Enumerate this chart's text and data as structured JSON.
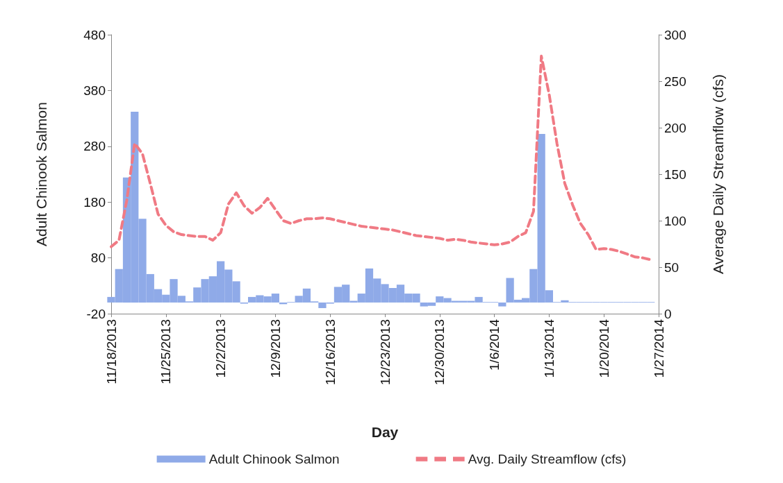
{
  "chart_data": {
    "type": "bar",
    "xlabel": "Day",
    "ylabel": "Adult Chinook Salmon",
    "y2label": "Average Daily Streamflow (cfs)",
    "x": [
      "2013-11-18",
      "2013-11-19",
      "2013-11-20",
      "2013-11-21",
      "2013-11-22",
      "2013-11-23",
      "2013-11-24",
      "2013-11-25",
      "2013-11-26",
      "2013-11-27",
      "2013-11-28",
      "2013-11-29",
      "2013-11-30",
      "2013-12-01",
      "2013-12-02",
      "2013-12-03",
      "2013-12-04",
      "2013-12-05",
      "2013-12-06",
      "2013-12-07",
      "2013-12-08",
      "2013-12-09",
      "2013-12-10",
      "2013-12-11",
      "2013-12-12",
      "2013-12-13",
      "2013-12-14",
      "2013-12-15",
      "2013-12-16",
      "2013-12-17",
      "2013-12-18",
      "2013-12-19",
      "2013-12-20",
      "2013-12-21",
      "2013-12-22",
      "2013-12-23",
      "2013-12-24",
      "2013-12-25",
      "2013-12-26",
      "2013-12-27",
      "2013-12-28",
      "2013-12-29",
      "2013-12-30",
      "2013-12-31",
      "2014-01-01",
      "2014-01-02",
      "2014-01-03",
      "2014-01-04",
      "2014-01-05",
      "2014-01-06",
      "2014-01-07",
      "2014-01-08",
      "2014-01-09",
      "2014-01-10",
      "2014-01-11",
      "2014-01-12",
      "2014-01-13",
      "2014-01-14",
      "2014-01-15",
      "2014-01-16",
      "2014-01-17",
      "2014-01-18",
      "2014-01-19",
      "2014-01-20",
      "2014-01-21",
      "2014-01-22",
      "2014-01-23",
      "2014-01-24",
      "2014-01-25",
      "2014-01-26"
    ],
    "series": [
      {
        "name": "Adult Chinook Salmon",
        "color": "#8faae8",
        "values": [
          10,
          60,
          224,
          342,
          150,
          51,
          24,
          14,
          42,
          12,
          2,
          27,
          42,
          47,
          74,
          59,
          38,
          -2,
          10,
          13,
          11,
          16,
          -3,
          1,
          12,
          25,
          2,
          -10,
          -2,
          28,
          32,
          3,
          16,
          61,
          43,
          33,
          26,
          32,
          16,
          16,
          -7,
          -6,
          11,
          8,
          3,
          3,
          3,
          10,
          1,
          1,
          -7,
          44,
          5,
          8,
          60,
          302,
          22,
          1,
          4,
          1,
          1,
          1,
          1,
          1,
          1,
          1,
          1,
          1,
          1,
          1
        ]
      },
      {
        "name": "Avg. Daily Streamflow (cfs)",
        "type": "line",
        "axis": "y2",
        "color": "#f07a84",
        "line_style": "dashed",
        "marker": "none",
        "values": [
          72,
          79,
          122,
          183,
          172,
          140,
          107,
          95,
          88,
          85,
          84,
          83,
          83,
          79,
          87,
          118,
          130,
          116,
          108,
          114,
          124,
          112,
          100,
          97,
          100,
          102,
          102,
          103,
          102,
          100,
          98,
          96,
          94,
          93,
          92,
          91,
          90,
          88,
          86,
          84,
          83,
          82,
          81,
          79,
          80,
          79,
          77,
          76,
          75,
          74,
          75,
          77,
          83,
          87,
          110,
          277,
          236,
          183,
          140,
          117,
          97,
          85,
          69,
          70,
          69,
          67,
          64,
          61,
          60,
          58
        ]
      }
    ],
    "xlim": [
      "2013-11-18",
      "2014-01-27"
    ],
    "xticks": [
      {
        "value": "2013-11-18",
        "label": "11/18/2013"
      },
      {
        "value": "2013-11-25",
        "label": "11/25/2013"
      },
      {
        "value": "2013-12-02",
        "label": "12/2/2013"
      },
      {
        "value": "2013-12-09",
        "label": "12/9/2013"
      },
      {
        "value": "2013-12-16",
        "label": "12/16/2013"
      },
      {
        "value": "2013-12-23",
        "label": "12/23/2013"
      },
      {
        "value": "2013-12-30",
        "label": "12/30/2013"
      },
      {
        "value": "2014-01-06",
        "label": "1/6/2014"
      },
      {
        "value": "2014-01-13",
        "label": "1/13/2014"
      },
      {
        "value": "2014-01-20",
        "label": "1/20/2014"
      },
      {
        "value": "2014-01-27",
        "label": "1/27/2014"
      }
    ],
    "ylim": [
      -20,
      480
    ],
    "yticks": [
      -20,
      80,
      180,
      280,
      380,
      480
    ],
    "y2lim": [
      0,
      300
    ],
    "y2ticks": [
      0,
      50,
      100,
      150,
      200,
      250,
      300
    ],
    "legend": "bottom",
    "grid": false
  }
}
